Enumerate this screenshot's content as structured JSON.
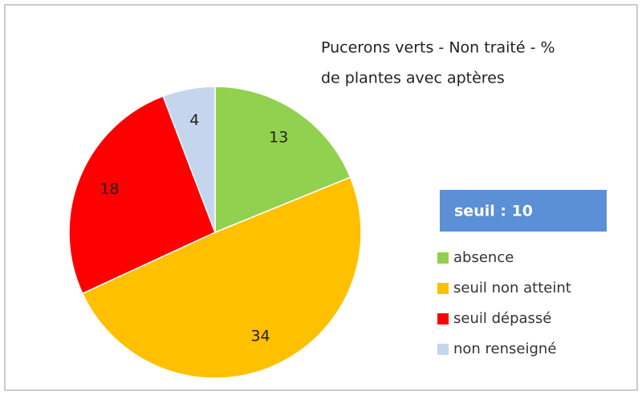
{
  "chart_data": {
    "type": "pie",
    "title": [
      "Pucerons verts - Non traité - %",
      "de plantes avec aptères"
    ],
    "annotation": "seuil : 10",
    "categories": [
      "absence",
      "seuil non atteint",
      "seuil dépassé",
      "non renseigné"
    ],
    "values": [
      13,
      34,
      18,
      4
    ],
    "colors": [
      "#92d050",
      "#ffc000",
      "#ff0000",
      "#c5d5ee"
    ],
    "legend": "right"
  }
}
